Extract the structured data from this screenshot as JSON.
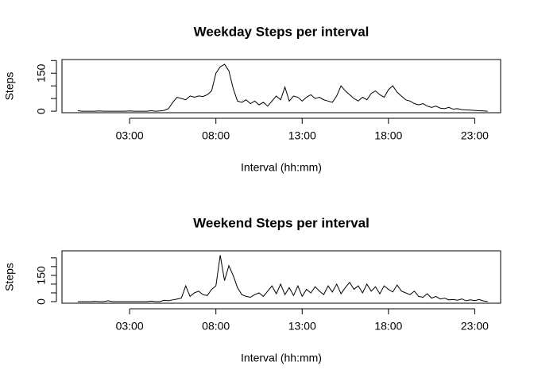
{
  "chart_data": [
    {
      "type": "line",
      "title": "Weekday Steps per interval",
      "xlabel": "Interval (hh:mm)",
      "ylabel": "Steps",
      "color": "#000000",
      "x": [
        0,
        0.25,
        0.5,
        0.75,
        1,
        1.25,
        1.5,
        1.75,
        2,
        2.25,
        2.5,
        2.75,
        3,
        3.25,
        3.5,
        3.75,
        4,
        4.25,
        4.5,
        4.75,
        5,
        5.25,
        5.5,
        5.75,
        6,
        6.25,
        6.5,
        6.75,
        7,
        7.25,
        7.5,
        7.75,
        8,
        8.25,
        8.5,
        8.75,
        9,
        9.25,
        9.5,
        9.75,
        10,
        10.25,
        10.5,
        10.75,
        11,
        11.25,
        11.5,
        11.75,
        12,
        12.25,
        12.5,
        12.75,
        13,
        13.25,
        13.5,
        13.75,
        14,
        14.25,
        14.5,
        14.75,
        15,
        15.25,
        15.5,
        15.75,
        16,
        16.25,
        16.5,
        16.75,
        17,
        17.25,
        17.5,
        17.75,
        18,
        18.25,
        18.5,
        18.75,
        19,
        19.25,
        19.5,
        19.75,
        20,
        20.25,
        20.5,
        20.75,
        21,
        21.25,
        21.5,
        21.75,
        22,
        22.25,
        22.5,
        22.75,
        23,
        23.25,
        23.5,
        23.75
      ],
      "values": [
        2,
        0,
        0,
        0,
        0,
        1,
        0,
        0,
        0,
        0,
        0,
        0,
        1,
        0,
        0,
        0,
        0,
        2,
        0,
        1,
        3,
        10,
        35,
        55,
        50,
        45,
        60,
        55,
        60,
        58,
        65,
        80,
        150,
        175,
        185,
        160,
        90,
        40,
        35,
        45,
        30,
        40,
        25,
        35,
        20,
        40,
        60,
        45,
        95,
        40,
        60,
        55,
        40,
        55,
        65,
        50,
        55,
        45,
        40,
        35,
        60,
        100,
        80,
        65,
        50,
        40,
        55,
        45,
        70,
        80,
        65,
        55,
        85,
        100,
        75,
        60,
        45,
        40,
        30,
        25,
        30,
        20,
        15,
        20,
        12,
        10,
        15,
        8,
        10,
        6,
        5,
        4,
        3,
        2,
        1,
        0
      ],
      "xlim": [
        -0.92,
        24.5
      ],
      "xticks": [
        {
          "value": 3,
          "label": "03:00"
        },
        {
          "value": 8,
          "label": "08:00"
        },
        {
          "value": 13,
          "label": "13:00"
        },
        {
          "value": 18,
          "label": "18:00"
        },
        {
          "value": 23,
          "label": "23:00"
        }
      ],
      "ylim": [
        -6,
        204
      ],
      "yticks": [
        0,
        150
      ],
      "yticks_unlabeled": [
        50,
        100,
        200
      ]
    },
    {
      "type": "line",
      "title": "Weekend Steps per interval",
      "xlabel": "Interval (hh:mm)",
      "ylabel": "Steps",
      "color": "#000000",
      "x": [
        0,
        0.25,
        0.5,
        0.75,
        1,
        1.25,
        1.5,
        1.75,
        2,
        2.25,
        2.5,
        2.75,
        3,
        3.25,
        3.5,
        3.75,
        4,
        4.25,
        4.5,
        4.75,
        5,
        5.25,
        5.5,
        5.75,
        6,
        6.25,
        6.5,
        6.75,
        7,
        7.25,
        7.5,
        7.75,
        8,
        8.25,
        8.5,
        8.75,
        9,
        9.25,
        9.5,
        9.75,
        10,
        10.25,
        10.5,
        10.75,
        11,
        11.25,
        11.5,
        11.75,
        12,
        12.25,
        12.5,
        12.75,
        13,
        13.25,
        13.5,
        13.75,
        14,
        14.25,
        14.5,
        14.75,
        15,
        15.25,
        15.5,
        15.75,
        16,
        16.25,
        16.5,
        16.75,
        17,
        17.25,
        17.5,
        17.75,
        18,
        18.25,
        18.5,
        18.75,
        19,
        19.25,
        19.5,
        19.75,
        20,
        20.25,
        20.5,
        20.75,
        21,
        21.25,
        21.5,
        21.75,
        22,
        22.25,
        22.5,
        22.75,
        23,
        23.25,
        23.5,
        23.75
      ],
      "values": [
        0,
        0,
        0,
        0,
        2,
        0,
        0,
        5,
        0,
        0,
        0,
        0,
        0,
        0,
        0,
        0,
        0,
        3,
        0,
        0,
        8,
        5,
        10,
        15,
        20,
        90,
        30,
        50,
        60,
        40,
        35,
        70,
        90,
        265,
        120,
        205,
        150,
        80,
        40,
        30,
        25,
        40,
        50,
        30,
        60,
        90,
        45,
        100,
        40,
        80,
        35,
        90,
        30,
        70,
        50,
        85,
        60,
        40,
        90,
        55,
        100,
        45,
        80,
        110,
        70,
        90,
        50,
        100,
        60,
        85,
        45,
        90,
        70,
        55,
        95,
        60,
        50,
        40,
        60,
        30,
        25,
        45,
        20,
        30,
        15,
        20,
        10,
        12,
        8,
        15,
        5,
        10,
        6,
        12,
        4,
        0
      ],
      "xlim": [
        -0.92,
        24.5
      ],
      "xticks": [
        {
          "value": 3,
          "label": "03:00"
        },
        {
          "value": 8,
          "label": "08:00"
        },
        {
          "value": 13,
          "label": "13:00"
        },
        {
          "value": 18,
          "label": "18:00"
        },
        {
          "value": 23,
          "label": "23:00"
        }
      ],
      "ylim": [
        -9,
        290
      ],
      "yticks": [
        0,
        150
      ],
      "yticks_unlabeled": [
        50,
        100,
        200,
        250
      ]
    }
  ]
}
